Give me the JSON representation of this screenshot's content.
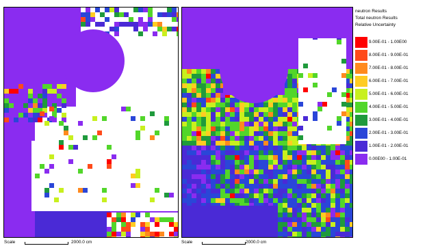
{
  "legend": {
    "line1": "neutron Results",
    "line2": "Total neutron Results",
    "line3": "Relative Uncertainty",
    "items": [
      {
        "label": "9.00E-01 - 1.00E00",
        "color": "#ff0000"
      },
      {
        "label": "8.00E-01 - 9.00E-01",
        "color": "#ff4a1a"
      },
      {
        "label": "7.00E-01 - 8.00E-01",
        "color": "#ff8a1e"
      },
      {
        "label": "6.00E-01 - 7.00E-01",
        "color": "#ffcc22"
      },
      {
        "label": "5.00E-01 - 6.00E-01",
        "color": "#c8f01e"
      },
      {
        "label": "4.00E-01 - 5.00E-01",
        "color": "#52d62a"
      },
      {
        "label": "3.00E-01 - 4.00E-01",
        "color": "#1f9a3c"
      },
      {
        "label": "2.00E-01 - 3.00E-01",
        "color": "#2a46d8"
      },
      {
        "label": "1.00E-01 - 2.00E-01",
        "color": "#4a2ad6"
      },
      {
        "label": "0.00E00 - 1.00E-01",
        "color": "#8a2cf0"
      }
    ]
  },
  "scale_left": {
    "label": "Scale",
    "value": "2000.0 cm"
  },
  "scale_right": {
    "label": "Scale",
    "value": "2000.0 cm"
  }
}
